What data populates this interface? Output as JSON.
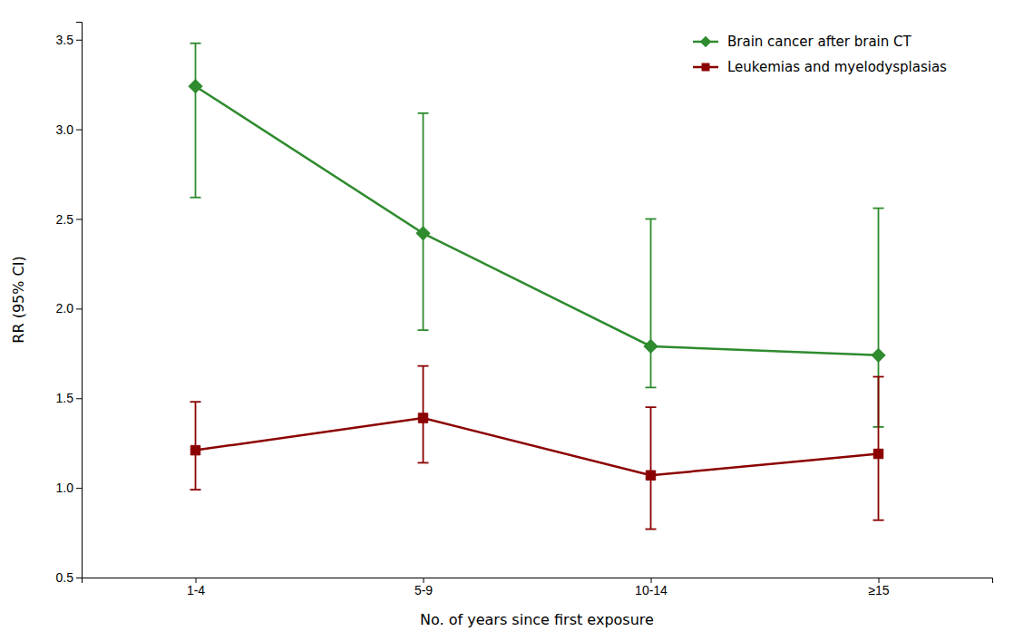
{
  "chart_data": {
    "type": "line",
    "xlabel": "No. of years since first exposure",
    "ylabel": "RR (95% CI)",
    "categories": [
      "1-4",
      "5-9",
      "10-14",
      "≥15"
    ],
    "ylim": [
      0.5,
      3.6
    ],
    "yticks": [
      0.5,
      {
        "value": 1.0,
        "label": "1.0"
      },
      1.5,
      {
        "value": 2.0,
        "label": "2.0"
      },
      2.5,
      {
        "value": 3.0,
        "label": "3.0"
      },
      3.5
    ],
    "grid": false,
    "legend": "upper right",
    "series": [
      {
        "name": "Brain cancer after brain CT",
        "color": "#2e8b2e",
        "marker": "diamond",
        "values": [
          3.24,
          2.42,
          1.79,
          1.74
        ],
        "ci_low": [
          2.62,
          1.88,
          1.56,
          1.34
        ],
        "ci_high": [
          3.48,
          3.09,
          2.5,
          2.56
        ]
      },
      {
        "name": "Leukemias and myelodysplasias",
        "color": "#8b0000",
        "marker": "square",
        "values": [
          1.21,
          1.39,
          1.07,
          1.19
        ],
        "ci_low": [
          0.99,
          1.14,
          0.77,
          0.82
        ],
        "ci_high": [
          1.48,
          1.68,
          1.45,
          1.62
        ]
      }
    ]
  }
}
